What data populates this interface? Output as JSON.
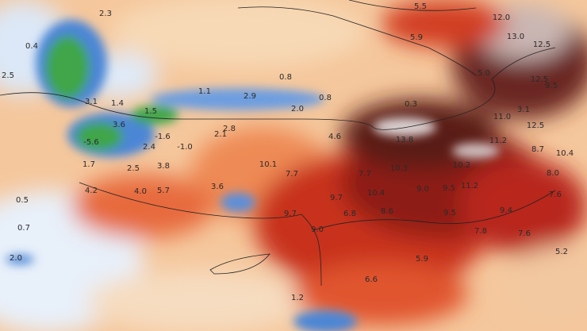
{
  "map": {
    "labels": [
      "2.3",
      "0.4",
      "2.5",
      "5.5",
      "12.0",
      "13.0",
      "12.5",
      "5.9",
      "5.0",
      "12.5",
      "9.5",
      "0.8",
      "1.1",
      "2.9",
      "2.0",
      "0.8",
      "0.3",
      "1.4",
      "1.5",
      "3.1",
      "3.6",
      "-5.6",
      "-1.6",
      "2.4",
      "-1.0",
      "2.8",
      "2.1",
      "4.6",
      "13.8",
      "11.0",
      "3.1",
      "12.5",
      "11.2",
      "8.7",
      "10.4",
      "10.1",
      "7.7",
      "7.7",
      "10.3",
      "10.2",
      "8.0",
      "2.5",
      "3.8",
      "1.7",
      "4.2",
      "4.0",
      "5.7",
      "3.6",
      "9.7",
      "10.4",
      "9.0",
      "9.5",
      "11.2",
      "7.6",
      "9.7",
      "6.8",
      "8.6",
      "9.5",
      "9.4",
      "9.0",
      "7.8",
      "7.6",
      "5.9",
      "5.2",
      "6.6",
      "2.0",
      "1.2",
      "0.5",
      "0.7"
    ]
  }
}
